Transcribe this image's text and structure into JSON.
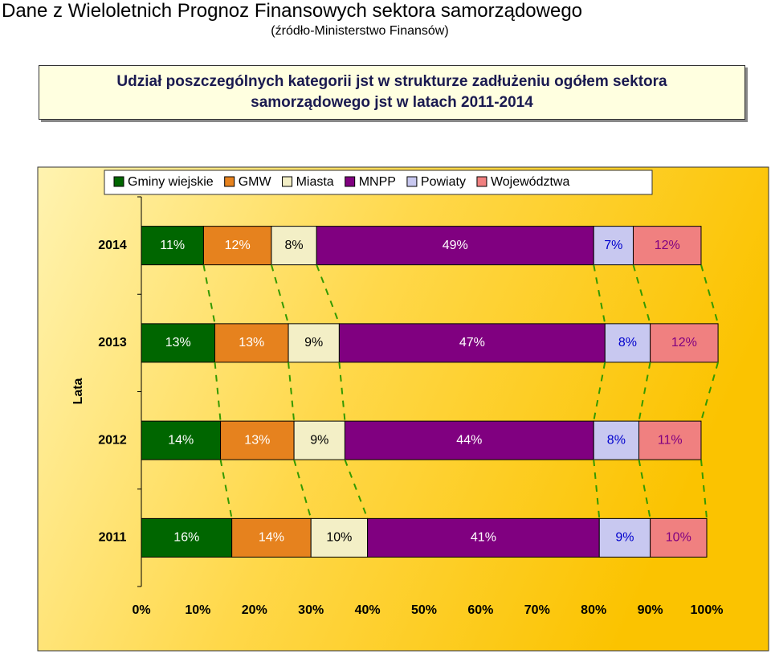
{
  "header": {
    "title": "Dane z Wieloletnich Prognoz Finansowych sektora samorządowego",
    "subtitle": "(źródło-Ministerstwo Finansów)",
    "box": "Udział poszczególnych kategorii jst w strukturze zadłużeniu ogółem sektora samorządowego jst w latach 2011-2014"
  },
  "chart_data": {
    "type": "stacked-bar-horizontal",
    "y_label": "Lata",
    "categories": [
      "2014",
      "2013",
      "2012",
      "2011"
    ],
    "series": [
      {
        "name": "Gminy wiejskie",
        "color": "#006600",
        "label_color": "#ffffff",
        "values": [
          11,
          13,
          14,
          16
        ],
        "value_labels": [
          "11%",
          "13%",
          "14%",
          "16%"
        ]
      },
      {
        "name": "GMW",
        "color": "#e6821e",
        "label_color": "#ffffff",
        "values": [
          12,
          13,
          13,
          14
        ],
        "value_labels": [
          "12%",
          "13%",
          "13%",
          "14%"
        ]
      },
      {
        "name": "Miasta",
        "color": "#f3efc6",
        "label_color": "#000000",
        "values": [
          8,
          9,
          9,
          10
        ],
        "value_labels": [
          "8%",
          "9%",
          "9%",
          "10%"
        ]
      },
      {
        "name": "MNPP",
        "color": "#800080",
        "label_color": "#ffffff",
        "values": [
          49,
          47,
          44,
          41
        ],
        "value_labels": [
          "49%",
          "47%",
          "44%",
          "41%"
        ]
      },
      {
        "name": "Powiaty",
        "color": "#c8c8f0",
        "label_color": "#0000cc",
        "values": [
          7,
          8,
          8,
          9
        ],
        "value_labels": [
          "7%",
          "8%",
          "8%",
          "9%"
        ]
      },
      {
        "name": "Województwa",
        "color": "#f08080",
        "label_color": "#800080",
        "values": [
          12,
          12,
          11,
          10
        ],
        "value_labels": [
          "12%",
          "12%",
          "11%",
          "10%"
        ]
      }
    ],
    "xlim": [
      0,
      100
    ],
    "xticks": [
      {
        "value": 0,
        "label": "0%"
      },
      {
        "value": 10,
        "label": "10%"
      },
      {
        "value": 20,
        "label": "20%"
      },
      {
        "value": 30,
        "label": "30%"
      },
      {
        "value": 40,
        "label": "40%"
      },
      {
        "value": 50,
        "label": "50%"
      },
      {
        "value": 60,
        "label": "60%"
      },
      {
        "value": 70,
        "label": "70%"
      },
      {
        "value": 80,
        "label": "80%"
      },
      {
        "value": 90,
        "label": "90%"
      },
      {
        "value": 100,
        "label": "100%"
      }
    ],
    "legend": "top",
    "series_lines": true
  }
}
